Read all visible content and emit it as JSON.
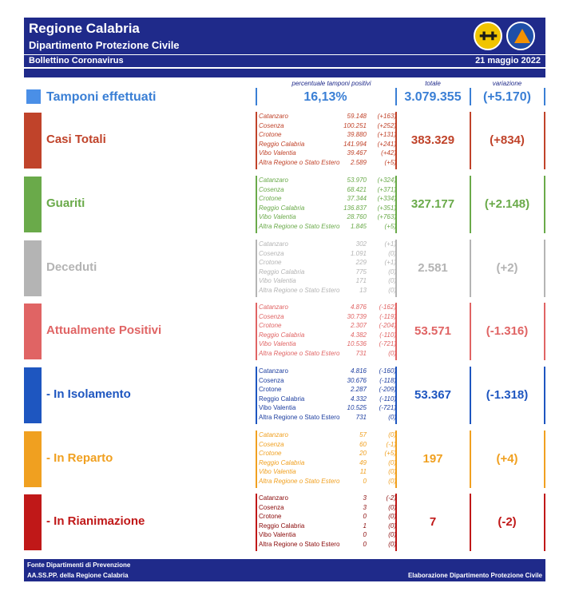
{
  "header": {
    "title": "Regione Calabria",
    "subtitle": "Dipartimento Protezione Civile",
    "bulletin": "Bollettino Coronavirus",
    "date": "21 maggio 2022"
  },
  "columns": {
    "percent": "percentuale tamponi positivi",
    "total": "totale",
    "variation": "variazione"
  },
  "tamponi": {
    "label": "Tamponi effettuati",
    "percent": "16,13%",
    "total": "3.079.355",
    "variation": "(+5.170)"
  },
  "sections": [
    {
      "label": "Casi Totali",
      "color": "#c0432a",
      "total": "383.329",
      "variation": "(+834)",
      "provinces": [
        {
          "name": "Catanzaro",
          "value": "59.148",
          "delta": "(+163)"
        },
        {
          "name": "Cosenza",
          "value": "100.251",
          "delta": "(+252)"
        },
        {
          "name": "Crotone",
          "value": "39.880",
          "delta": "(+131)"
        },
        {
          "name": "Reggio Calabria",
          "value": "141.994",
          "delta": "(+241)"
        },
        {
          "name": "Vibo Valentia",
          "value": "39.467",
          "delta": "(+42)"
        },
        {
          "name": "Altra Regione o Stato Estero",
          "value": "2.589",
          "delta": "(+5)"
        }
      ]
    },
    {
      "label": "Guariti",
      "color": "#6aaa4a",
      "total": "327.177",
      "variation": "(+2.148)",
      "provinces": [
        {
          "name": "Catanzaro",
          "value": "53.970",
          "delta": "(+324)"
        },
        {
          "name": "Cosenza",
          "value": "68.421",
          "delta": "(+371)"
        },
        {
          "name": "Crotone",
          "value": "37.344",
          "delta": "(+334)"
        },
        {
          "name": "Reggio Calabria",
          "value": "136.837",
          "delta": "(+351)"
        },
        {
          "name": "Vibo Valentia",
          "value": "28.760",
          "delta": "(+763)"
        },
        {
          "name": "Altra Regione o Stato Estero",
          "value": "1.845",
          "delta": "(+5)"
        }
      ]
    },
    {
      "label": "Deceduti",
      "color": "#b4b4b4",
      "total": "2.581",
      "variation": "(+2)",
      "provinces": [
        {
          "name": "Catanzaro",
          "value": "302",
          "delta": "(+1)"
        },
        {
          "name": "Cosenza",
          "value": "1.091",
          "delta": "(0)"
        },
        {
          "name": "Crotone",
          "value": "229",
          "delta": "(+1)"
        },
        {
          "name": "Reggio Calabria",
          "value": "775",
          "delta": "(0)"
        },
        {
          "name": "Vibo Valentia",
          "value": "171",
          "delta": "(0)"
        },
        {
          "name": "Altra Regione o Stato Estero",
          "value": "13",
          "delta": "(0)"
        }
      ]
    },
    {
      "label": "Attualmente Positivi",
      "color": "#e06464",
      "total": "53.571",
      "variation": "(-1.316)",
      "provinces": [
        {
          "name": "Catanzaro",
          "value": "4.876",
          "delta": "(-162)"
        },
        {
          "name": "Cosenza",
          "value": "30.739",
          "delta": "(-119)"
        },
        {
          "name": "Crotone",
          "value": "2.307",
          "delta": "(-204)"
        },
        {
          "name": "Reggio Calabria",
          "value": "4.382",
          "delta": "(-110)"
        },
        {
          "name": "Vibo Valentia",
          "value": "10.536",
          "delta": "(-721)"
        },
        {
          "name": "Altra Regione o Stato Estero",
          "value": "731",
          "delta": "(0)"
        }
      ]
    },
    {
      "label": "- In Isolamento",
      "color": "#1e56c0",
      "total": "53.367",
      "variation": "(-1.318)",
      "provinces": [
        {
          "name": "Catanzaro",
          "value": "4.816",
          "delta": "(-160)"
        },
        {
          "name": "Cosenza",
          "value": "30.676",
          "delta": "(-118)"
        },
        {
          "name": "Crotone",
          "value": "2.287",
          "delta": "(-209)"
        },
        {
          "name": "Reggio Calabria",
          "value": "4.332",
          "delta": "(-110)"
        },
        {
          "name": "Vibo Valentia",
          "value": "10.525",
          "delta": "(-721)"
        },
        {
          "name": "Altra Regione o Stato Estero",
          "value": "731",
          "delta": "(0)"
        }
      ]
    },
    {
      "label": "- In Reparto",
      "color": "#f0a020",
      "total": "197",
      "variation": "(+4)",
      "provinces": [
        {
          "name": "Catanzaro",
          "value": "57",
          "delta": "(0)"
        },
        {
          "name": "Cosenza",
          "value": "60",
          "delta": "(-1)"
        },
        {
          "name": "Crotone",
          "value": "20",
          "delta": "(+5)"
        },
        {
          "name": "Reggio Calabria",
          "value": "49",
          "delta": "(0)"
        },
        {
          "name": "Vibo Valentia",
          "value": "11",
          "delta": "(0)"
        },
        {
          "name": "Altra Regione o Stato Estero",
          "value": "0",
          "delta": "(0)"
        }
      ]
    },
    {
      "label": "- In Rianimazione",
      "color": "#c01818",
      "total": "7",
      "variation": "(-2)",
      "provinces": [
        {
          "name": "Catanzaro",
          "value": "3",
          "delta": "(-2)"
        },
        {
          "name": "Cosenza",
          "value": "3",
          "delta": "(0)"
        },
        {
          "name": "Crotone",
          "value": "0",
          "delta": "(0)"
        },
        {
          "name": "Reggio Calabria",
          "value": "1",
          "delta": "(0)"
        },
        {
          "name": "Vibo Valentia",
          "value": "0",
          "delta": "(0)"
        },
        {
          "name": "Altra Regione o Stato Estero",
          "value": "0",
          "delta": "(0)"
        }
      ]
    }
  ],
  "footer": {
    "source1": "Fonte Dipartimenti di Prevenzione",
    "source2": "AA.SS.PP.  della Regione Calabria",
    "credit": "Elaborazione Dipartimento Protezione Civile"
  },
  "labelcolors": {
    "Casi Totali": "#c0432a",
    "tamponi": "#3a7fd5"
  }
}
